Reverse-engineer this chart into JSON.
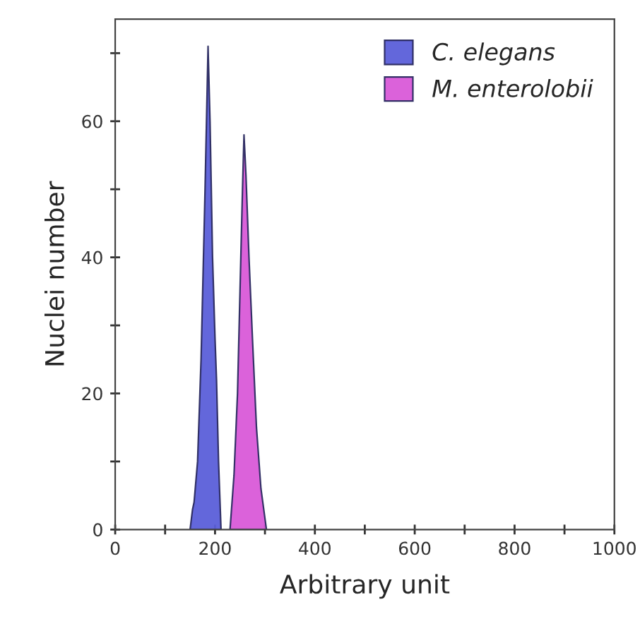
{
  "chart_data": {
    "type": "area",
    "xlabel": "Arbitrary unit",
    "ylabel": "Nuclei number",
    "xlim": [
      0,
      1000
    ],
    "ylim": [
      0,
      75
    ],
    "xticks": [
      0,
      {
        "value": 100,
        "label": null
      },
      200,
      {
        "value": 300,
        "label": null
      },
      400,
      {
        "value": 500,
        "label": null
      },
      600,
      {
        "value": 700,
        "label": null
      },
      800,
      {
        "value": 900,
        "label": null
      },
      1000
    ],
    "yticks": [
      0,
      {
        "value": 10,
        "label": null
      },
      20,
      {
        "value": 30,
        "label": null
      },
      40,
      {
        "value": 50,
        "label": null
      },
      60,
      {
        "value": 70,
        "label": null
      }
    ],
    "legend": "top right",
    "grid": false,
    "series": [
      {
        "name": "C. elegans",
        "color": "#5b5fd9",
        "x": [
          150,
          155,
          158,
          165,
          172,
          180,
          186,
          190,
          195,
          200,
          203,
          207,
          212
        ],
        "values": [
          0,
          3,
          4,
          10,
          25,
          50,
          71,
          60,
          40,
          28,
          22,
          10,
          0
        ]
      },
      {
        "name": "M. enterolobii",
        "color": "#d95ad8",
        "x": [
          230,
          238,
          245,
          250,
          255,
          258,
          262,
          268,
          275,
          283,
          292,
          303
        ],
        "values": [
          0,
          8,
          20,
          35,
          50,
          58,
          52,
          40,
          28,
          15,
          6,
          0
        ]
      }
    ]
  }
}
